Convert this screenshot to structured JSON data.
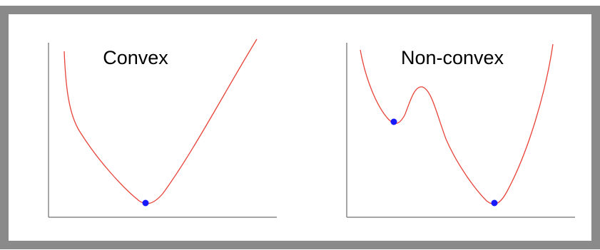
{
  "panels": [
    {
      "label": "Convex"
    },
    {
      "label": "Non-convex"
    }
  ]
}
